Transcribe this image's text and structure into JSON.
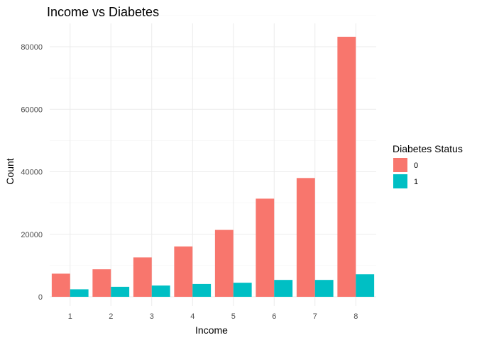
{
  "chart_data": {
    "type": "bar",
    "title": "Income vs Diabetes",
    "xlabel": "Income",
    "ylabel": "Count",
    "categories": [
      "1",
      "2",
      "3",
      "4",
      "5",
      "6",
      "7",
      "8"
    ],
    "series": [
      {
        "name": "0",
        "color": "#F8766D",
        "values": [
          7400,
          8800,
          12600,
          16100,
          21400,
          31400,
          38000,
          83200
        ]
      },
      {
        "name": "1",
        "color": "#00BFC4",
        "values": [
          2400,
          3200,
          3600,
          4100,
          4500,
          5400,
          5400,
          7200
        ]
      }
    ],
    "yticks": [
      0,
      20000,
      40000,
      60000,
      80000
    ],
    "ytick_labels": [
      "0",
      "20000",
      "40000",
      "60000",
      "80000"
    ],
    "ylim": [
      0,
      87000
    ],
    "legend": {
      "title": "Diabetes Status",
      "position": "right"
    },
    "grid": true
  }
}
